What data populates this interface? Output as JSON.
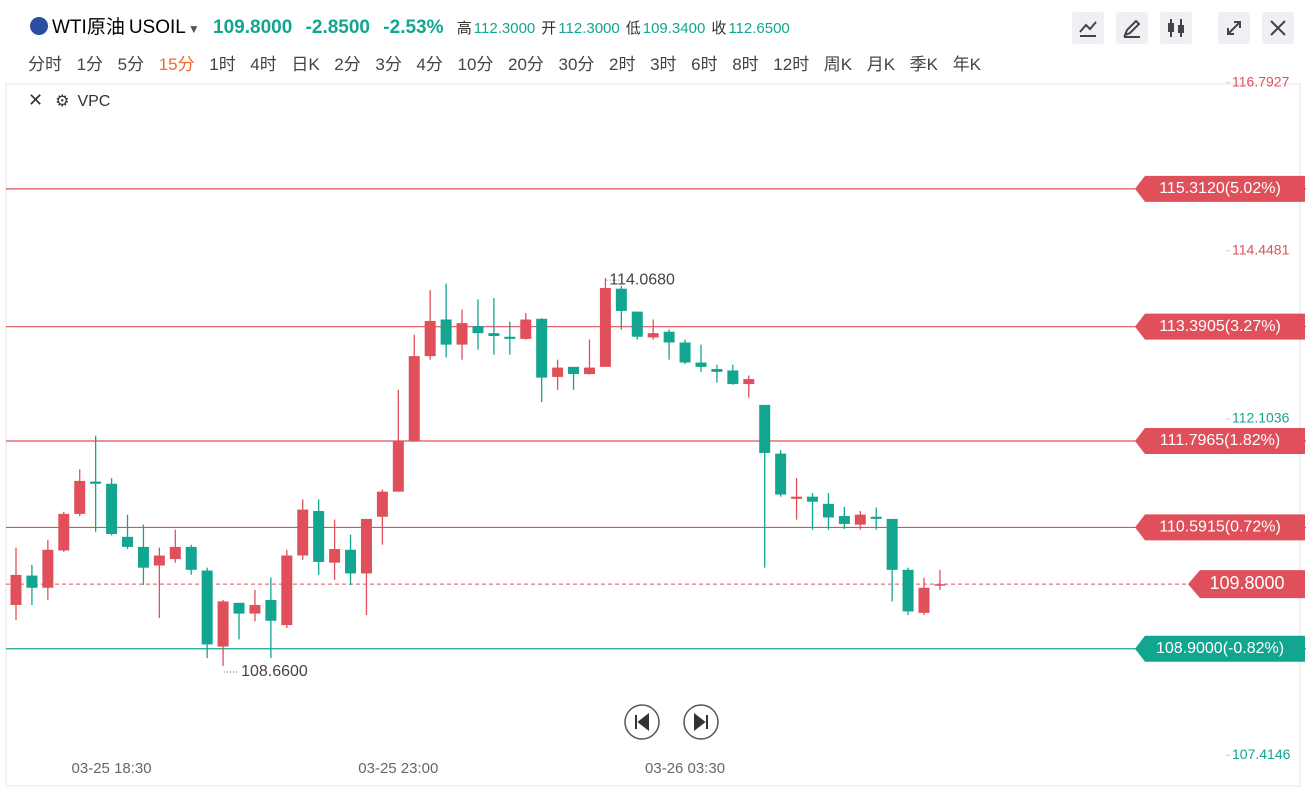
{
  "header": {
    "name": "WTI原油",
    "symbol": "USOIL",
    "price": "109.8000",
    "change": "-2.8500",
    "change_pct": "-2.53%",
    "stats": [
      {
        "label": "高",
        "value": "112.3000"
      },
      {
        "label": "开",
        "value": "112.3000"
      },
      {
        "label": "低",
        "value": "109.3400"
      },
      {
        "label": "收",
        "value": "112.6500"
      }
    ],
    "timeframes": [
      "分时",
      "1分",
      "5分",
      "15分",
      "1时",
      "4时",
      "日K",
      "2分",
      "3分",
      "4分",
      "10分",
      "20分",
      "30分",
      "2时",
      "3时",
      "6时",
      "8时",
      "12时",
      "周K",
      "月K",
      "季K",
      "年K"
    ],
    "active_timeframe": "15分",
    "indicator": "VPC"
  },
  "chart_data": {
    "type": "candlestick",
    "categories": [
      null,
      null,
      null,
      null,
      null,
      null,
      "03-25 18:30",
      null,
      null,
      null,
      null,
      null,
      null,
      null,
      null,
      null,
      null,
      null,
      null,
      null,
      null,
      null,
      null,
      null,
      "03-25 23:00",
      null,
      null,
      null,
      null,
      null,
      null,
      null,
      null,
      null,
      null,
      null,
      null,
      null,
      null,
      null,
      null,
      null,
      "03-26 03:30",
      null,
      null,
      null,
      null,
      null,
      null,
      null,
      null,
      null,
      null,
      null,
      null,
      null,
      null,
      null,
      null
    ],
    "open": [
      109.51,
      109.92,
      109.75,
      110.27,
      110.78,
      111.23,
      111.2,
      110.46,
      110.32,
      110.06,
      110.15,
      110.32,
      109.99,
      108.93,
      109.54,
      109.39,
      109.58,
      109.23,
      110.2,
      110.82,
      110.1,
      110.28,
      109.95,
      110.74,
      111.09,
      111.8,
      112.98,
      113.49,
      113.14,
      113.4,
      113.3,
      113.25,
      113.22,
      113.5,
      112.69,
      112.83,
      112.73,
      112.83,
      113.92,
      113.6,
      113.24,
      113.32,
      113.17,
      112.89,
      112.8,
      112.78,
      112.59,
      112.3,
      111.62,
      110.99,
      111.02,
      110.92,
      110.75,
      110.63,
      110.74,
      110.71,
      110.0,
      109.4,
      109.78
    ],
    "high": [
      110.31,
      110.07,
      110.42,
      110.81,
      111.4,
      111.87,
      111.28,
      110.77,
      110.63,
      110.31,
      110.56,
      110.35,
      110.03,
      109.58,
      109.54,
      109.72,
      109.89,
      110.28,
      110.98,
      110.98,
      110.7,
      110.49,
      110.71,
      111.12,
      112.51,
      113.28,
      113.9,
      113.99,
      113.63,
      113.77,
      113.79,
      113.46,
      113.58,
      113.51,
      112.93,
      112.83,
      113.21,
      114.068,
      113.96,
      113.6,
      113.49,
      113.35,
      113.21,
      113.14,
      112.86,
      112.86,
      112.71,
      112.3,
      111.67,
      111.28,
      111.07,
      111.07,
      110.88,
      110.82,
      110.87,
      110.71,
      110.03,
      109.89,
      110.0
    ],
    "low": [
      109.3,
      109.51,
      109.58,
      110.25,
      110.75,
      110.53,
      110.48,
      110.29,
      109.79,
      109.33,
      110.1,
      109.93,
      108.77,
      108.66,
      109.03,
      109.28,
      108.77,
      109.19,
      110.14,
      109.93,
      109.86,
      109.79,
      109.37,
      110.35,
      111.09,
      111.8,
      112.93,
      112.96,
      112.93,
      113.07,
      113.0,
      113.0,
      113.21,
      112.34,
      112.51,
      112.51,
      112.72,
      112.83,
      113.35,
      113.21,
      113.21,
      112.93,
      112.87,
      112.76,
      112.61,
      112.58,
      112.4,
      110.03,
      111.02,
      110.7,
      110.56,
      110.56,
      110.57,
      110.56,
      110.56,
      109.56,
      109.37,
      109.37,
      109.72
    ],
    "close": [
      109.93,
      109.75,
      110.28,
      110.78,
      111.24,
      111.2,
      110.5,
      110.32,
      110.03,
      110.2,
      110.32,
      110.0,
      108.96,
      109.56,
      109.39,
      109.51,
      109.29,
      110.2,
      110.84,
      110.11,
      110.29,
      109.95,
      110.71,
      111.09,
      111.8,
      112.98,
      113.47,
      113.14,
      113.44,
      113.3,
      113.26,
      113.22,
      113.49,
      112.68,
      112.82,
      112.73,
      112.82,
      113.93,
      113.61,
      113.25,
      113.3,
      113.17,
      112.89,
      112.83,
      112.76,
      112.59,
      112.66,
      111.63,
      111.05,
      111.02,
      110.95,
      110.73,
      110.64,
      110.77,
      110.71,
      110.0,
      109.42,
      109.75,
      109.8
    ],
    "up_color": "#e0505b",
    "down_color": "#12a58f",
    "ylim": [
      107.0,
      116.76
    ],
    "yticks": [
      {
        "value": 116.7927,
        "label": "116.7927"
      },
      {
        "value": 114.4481,
        "label": "114.4481"
      },
      {
        "value": 112.1036,
        "label": "112.1036"
      },
      {
        "value": 107.4146,
        "label": "107.4146"
      }
    ],
    "ytick_colors": [
      "#e0505b",
      "#e0505b",
      "#12a58f",
      "#12a58f"
    ],
    "high_label": "114.0680",
    "low_label": "108.6600",
    "price_lines": [
      {
        "value": 115.312,
        "label": "115.3120(5.02%)",
        "color": "#e0505b"
      },
      {
        "value": 113.3905,
        "label": "113.3905(3.27%)",
        "color": "#e0505b"
      },
      {
        "value": 111.7965,
        "label": "111.7965(1.82%)",
        "color": "#e0505b"
      },
      {
        "value": 110.5915,
        "label": "110.5915(0.72%)",
        "color": "#e0505b"
      },
      {
        "value": 108.9,
        "label": "108.9000(-0.82%)",
        "color": "#12a58f"
      }
    ],
    "last_price": {
      "value": 109.8,
      "label": "109.8000",
      "color": "#e0505b"
    }
  }
}
